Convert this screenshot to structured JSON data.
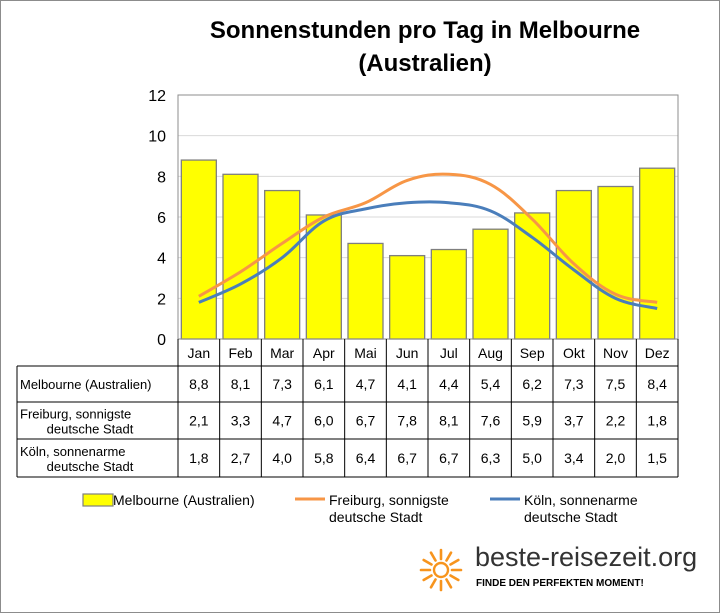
{
  "chart_data": {
    "type": "bar",
    "title_line1": "Sonnenstunden pro Tag in Melbourne",
    "title_line2": "(Australien)",
    "categories": [
      "Jan",
      "Feb",
      "Mar",
      "Apr",
      "Mai",
      "Jun",
      "Jul",
      "Aug",
      "Sep",
      "Okt",
      "Nov",
      "Dez"
    ],
    "ylim": [
      0,
      12
    ],
    "yticks": [
      0,
      2,
      4,
      6,
      8,
      10,
      12
    ],
    "grid": true,
    "legend": "bottom",
    "series": [
      {
        "name": "Melbourne (Australien)",
        "kind": "bar",
        "color": "#ffff00",
        "table_label": [
          "Melbourne (Australien)"
        ],
        "legend_label": [
          "Melbourne (Australien)"
        ],
        "values": [
          8.8,
          8.1,
          7.3,
          6.1,
          4.7,
          4.1,
          4.4,
          5.4,
          6.2,
          7.3,
          7.5,
          8.4
        ],
        "display": [
          "8,8",
          "8,1",
          "7,3",
          "6,1",
          "4,7",
          "4,1",
          "4,4",
          "5,4",
          "6,2",
          "7,3",
          "7,5",
          "8,4"
        ]
      },
      {
        "name": "Freiburg, sonnigste deutsche Stadt",
        "kind": "line",
        "color": "#f79646",
        "table_label": [
          "Freiburg, sonnigste",
          "deutsche Stadt"
        ],
        "legend_label": [
          "Freiburg, sonnigste",
          "deutsche Stadt"
        ],
        "values": [
          2.1,
          3.3,
          4.7,
          6.0,
          6.7,
          7.8,
          8.1,
          7.6,
          5.9,
          3.7,
          2.2,
          1.8
        ],
        "display": [
          "2,1",
          "3,3",
          "4,7",
          "6,0",
          "6,7",
          "7,8",
          "8,1",
          "7,6",
          "5,9",
          "3,7",
          "2,2",
          "1,8"
        ]
      },
      {
        "name": "Köln, sonnenarme deutsche Stadt",
        "kind": "line",
        "color": "#4a7ebb",
        "table_label": [
          "Köln, sonnenarme",
          "deutsche Stadt"
        ],
        "legend_label": [
          "Köln, sonnenarme",
          "deutsche Stadt"
        ],
        "values": [
          1.8,
          2.7,
          4.0,
          5.8,
          6.4,
          6.7,
          6.7,
          6.3,
          5.0,
          3.4,
          2.0,
          1.5
        ],
        "display": [
          "1,8",
          "2,7",
          "4,0",
          "5,8",
          "6,4",
          "6,7",
          "6,7",
          "6,3",
          "5,0",
          "3,4",
          "2,0",
          "1,5"
        ]
      }
    ]
  },
  "branding": {
    "site": "beste-reisezeit.org",
    "slogan": "FINDE DEN PERFEKTEN MOMENT!",
    "sun_color": "#f7941d"
  }
}
